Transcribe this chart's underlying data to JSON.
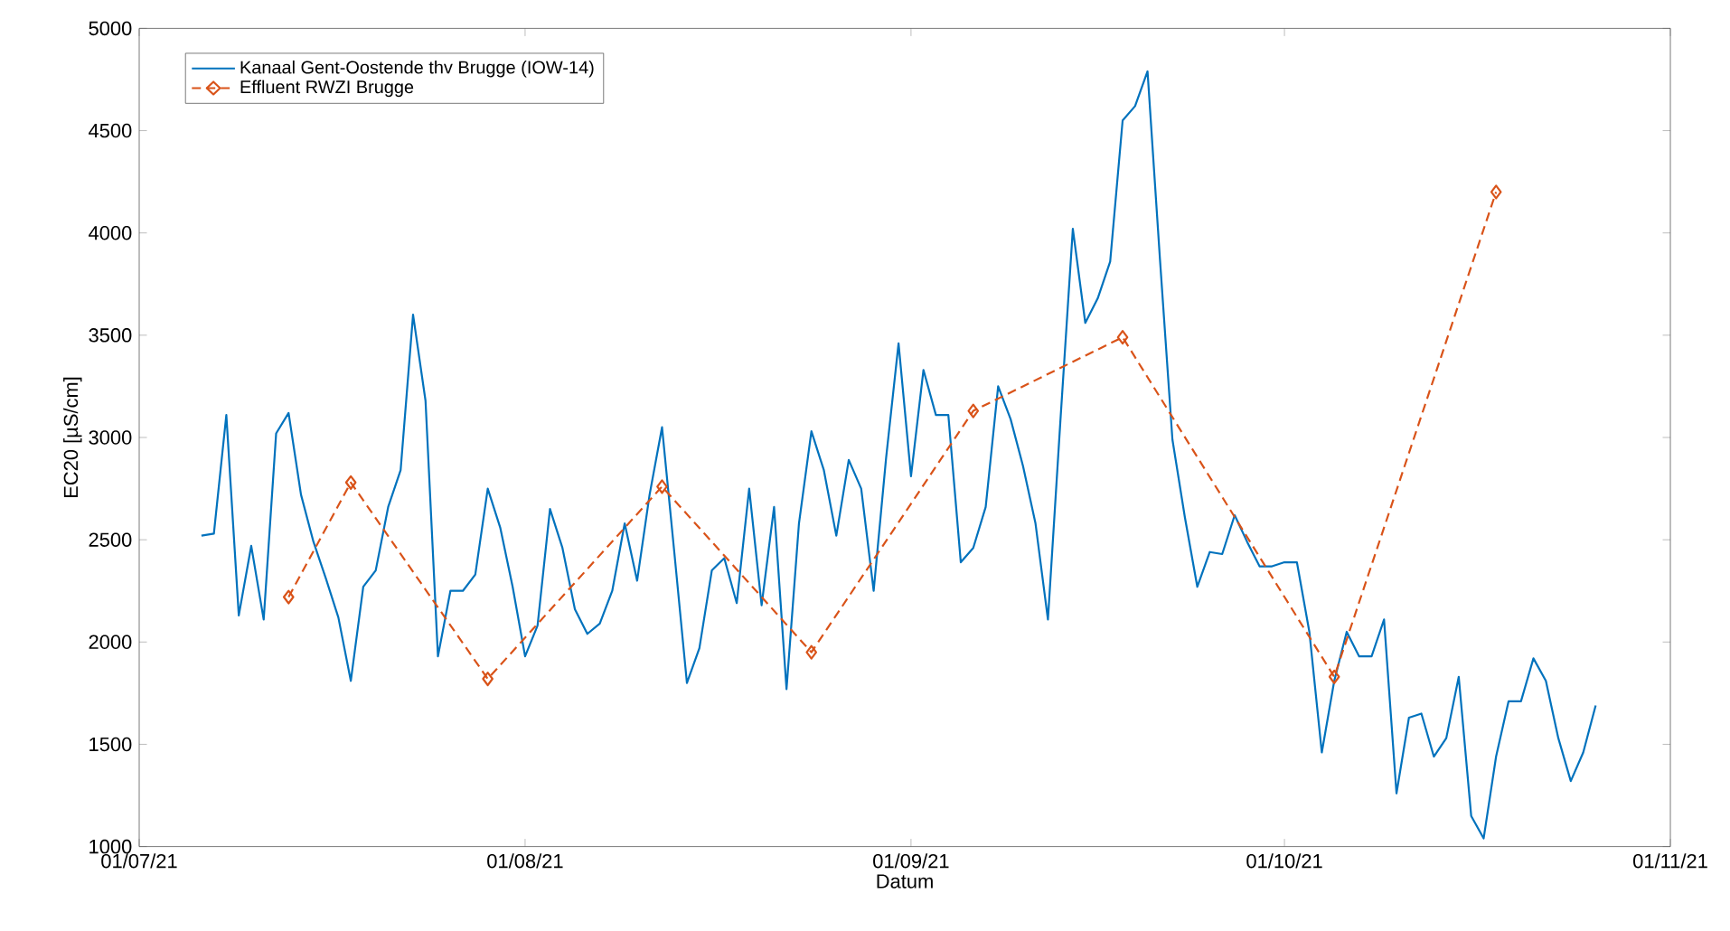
{
  "chart_data": {
    "type": "line",
    "xlabel": "Datum",
    "ylabel": "EC20 [µS/cm]",
    "xlim": [
      "2021-07-01",
      "2021-11-01"
    ],
    "ylim": [
      1000,
      5000
    ],
    "xticks": [
      {
        "value": "2021-07-01",
        "label": "01/07/21"
      },
      {
        "value": "2021-08-01",
        "label": "01/08/21"
      },
      {
        "value": "2021-09-01",
        "label": "01/09/21"
      },
      {
        "value": "2021-10-01",
        "label": "01/10/21"
      },
      {
        "value": "2021-11-01",
        "label": "01/11/21"
      }
    ],
    "yticks": [
      1000,
      1500,
      2000,
      2500,
      3000,
      3500,
      4000,
      4500,
      5000
    ],
    "grid": false,
    "legend": "top left",
    "series": [
      {
        "name": "Kanaal Gent-Oostende thv Brugge (IOW-14)",
        "color": "#0072bd",
        "marker": "none",
        "line_style": "solid",
        "x": [
          "2021-07-06",
          "2021-07-07",
          "2021-07-08",
          "2021-07-09",
          "2021-07-10",
          "2021-07-11",
          "2021-07-12",
          "2021-07-13",
          "2021-07-14",
          "2021-07-15",
          "2021-07-16",
          "2021-07-17",
          "2021-07-18",
          "2021-07-19",
          "2021-07-20",
          "2021-07-21",
          "2021-07-22",
          "2021-07-23",
          "2021-07-24",
          "2021-07-25",
          "2021-07-26",
          "2021-07-27",
          "2021-07-28",
          "2021-07-29",
          "2021-07-30",
          "2021-07-31",
          "2021-08-01",
          "2021-08-02",
          "2021-08-03",
          "2021-08-04",
          "2021-08-05",
          "2021-08-06",
          "2021-08-07",
          "2021-08-08",
          "2021-08-09",
          "2021-08-10",
          "2021-08-11",
          "2021-08-12",
          "2021-08-13",
          "2021-08-14",
          "2021-08-15",
          "2021-08-16",
          "2021-08-17",
          "2021-08-18",
          "2021-08-19",
          "2021-08-20",
          "2021-08-21",
          "2021-08-22",
          "2021-08-23",
          "2021-08-24",
          "2021-08-25",
          "2021-08-26",
          "2021-08-27",
          "2021-08-28",
          "2021-08-29",
          "2021-08-30",
          "2021-08-31",
          "2021-09-01",
          "2021-09-02",
          "2021-09-03",
          "2021-09-04",
          "2021-09-05",
          "2021-09-06",
          "2021-09-07",
          "2021-09-08",
          "2021-09-09",
          "2021-09-10",
          "2021-09-11",
          "2021-09-12",
          "2021-09-13",
          "2021-09-14",
          "2021-09-15",
          "2021-09-16",
          "2021-09-17",
          "2021-09-18",
          "2021-09-19",
          "2021-09-20",
          "2021-09-21",
          "2021-09-22",
          "2021-09-23",
          "2021-09-24",
          "2021-09-25",
          "2021-09-26",
          "2021-09-27",
          "2021-09-28",
          "2021-09-29",
          "2021-09-30",
          "2021-10-01",
          "2021-10-02",
          "2021-10-03",
          "2021-10-04",
          "2021-10-05",
          "2021-10-06",
          "2021-10-07",
          "2021-10-08",
          "2021-10-09",
          "2021-10-10",
          "2021-10-11",
          "2021-10-12",
          "2021-10-13",
          "2021-10-14",
          "2021-10-15",
          "2021-10-16",
          "2021-10-17",
          "2021-10-18",
          "2021-10-19",
          "2021-10-20",
          "2021-10-21",
          "2021-10-22",
          "2021-10-23",
          "2021-10-24",
          "2021-10-25",
          "2021-10-26"
        ],
        "values": [
          2520,
          2530,
          3110,
          2130,
          2470,
          2110,
          3020,
          3120,
          2720,
          2490,
          2310,
          2120,
          1810,
          2270,
          2350,
          2660,
          2840,
          3600,
          3180,
          1930,
          2250,
          2250,
          2330,
          2750,
          2560,
          2270,
          1930,
          2080,
          2650,
          2460,
          2160,
          2040,
          2090,
          2250,
          2580,
          2300,
          2720,
          3050,
          2430,
          1800,
          1970,
          2350,
          2410,
          2190,
          2750,
          2180,
          2660,
          1770,
          2580,
          3030,
          2840,
          2520,
          2890,
          2750,
          2250,
          2900,
          3460,
          2810,
          3330,
          3110,
          3110,
          2390,
          2460,
          2660,
          3250,
          3090,
          2860,
          2580,
          2110,
          3080,
          4020,
          3560,
          3680,
          3860,
          4550,
          4620,
          4790,
          3870,
          2990,
          2610,
          2270,
          2440,
          2430,
          2620,
          2490,
          2370,
          2370,
          2390,
          2390,
          2050,
          1460,
          1810,
          2050,
          1930,
          1930,
          2110,
          1260,
          1630,
          1650,
          1440,
          1530,
          1830,
          1150,
          1040,
          1440,
          1710,
          1710,
          1920,
          1810,
          1530,
          1320,
          1460,
          1690
        ]
      },
      {
        "name": "Effluent RWZI Brugge",
        "color": "#d95319",
        "marker": "diamond",
        "line_style": "dashed",
        "x": [
          "2021-07-13",
          "2021-07-18",
          "2021-07-29",
          "2021-08-12",
          "2021-08-24",
          "2021-09-06",
          "2021-09-18",
          "2021-10-05",
          "2021-10-18"
        ],
        "values": [
          2220,
          2780,
          1820,
          2760,
          1950,
          3130,
          3490,
          1830,
          4200
        ]
      }
    ]
  }
}
